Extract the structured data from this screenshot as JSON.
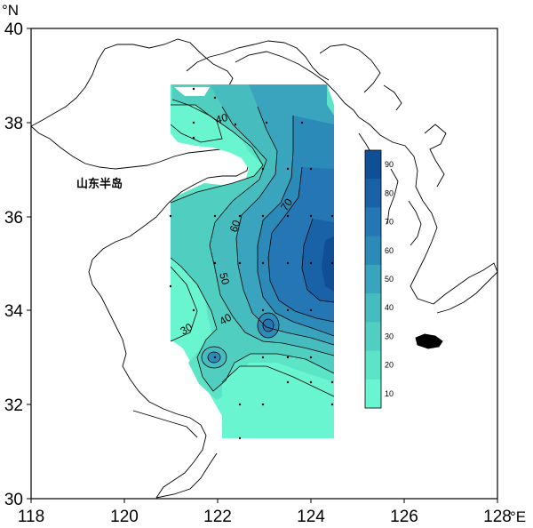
{
  "axes": {
    "lon_unit": "°E",
    "lat_unit": "°N",
    "lon_ticks": [
      "118",
      "120",
      "122",
      "124",
      "126",
      "128"
    ],
    "lat_ticks": [
      "40",
      "38",
      "36",
      "34",
      "32",
      "30"
    ],
    "lon_range": [
      118,
      128
    ],
    "lat_range": [
      30,
      40
    ]
  },
  "place_label": "山东半岛",
  "contour_labels": [
    "40",
    "70",
    "60",
    "50",
    "40",
    "30"
  ],
  "colorbar": {
    "labels": [
      "90",
      "80",
      "70",
      "60",
      "50",
      "40",
      "30",
      "20",
      "10"
    ],
    "colors": [
      "#0e4f96",
      "#1a62a8",
      "#2477b4",
      "#2c8ab9",
      "#3aa3bd",
      "#47bcbe",
      "#50cfc0",
      "#5be4c6",
      "#68f5cf"
    ]
  },
  "land_color": "#ffffff",
  "coast_color": "#000000"
}
